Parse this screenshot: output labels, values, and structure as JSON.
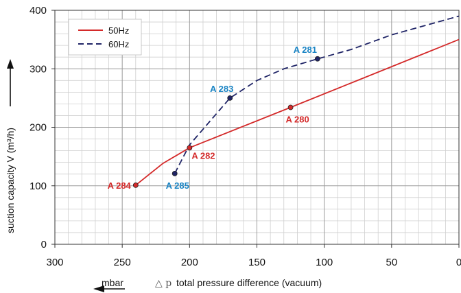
{
  "chart_data": {
    "type": "line",
    "xlabel": "total pressure difference (vacuum)",
    "xlabel_symbol": "△ p",
    "xunit": "mbar",
    "ylabel": "suction capacity V (m³/h)",
    "xlim": [
      300,
      0
    ],
    "ylim": [
      0,
      400
    ],
    "x_ticks": [
      300,
      250,
      200,
      150,
      100,
      50,
      0
    ],
    "y_ticks": [
      0,
      100,
      200,
      300,
      400
    ],
    "x_minor_step": 10,
    "y_minor_step": 20,
    "grid": true,
    "legend_position": "top-left",
    "series": [
      {
        "name": "50Hz",
        "color": "#d42a2a",
        "style": "solid",
        "points": [
          [
            240,
            101
          ],
          [
            220,
            138
          ],
          [
            200,
            165
          ],
          [
            125,
            234
          ],
          [
            0,
            350
          ]
        ]
      },
      {
        "name": "60Hz",
        "color": "#1f2466",
        "style": "dashed",
        "points": [
          [
            211,
            121
          ],
          [
            200,
            170
          ],
          [
            170,
            250
          ],
          [
            150,
            280
          ],
          [
            130,
            300
          ],
          [
            105,
            317
          ],
          [
            80,
            333
          ],
          [
            50,
            358
          ],
          [
            0,
            390
          ]
        ]
      }
    ],
    "markers": [
      {
        "label": "A 284",
        "x": 240,
        "y": 101,
        "series": 0,
        "label_color": "#d42a2a",
        "anchor": "end",
        "dx": -7,
        "dy": 5
      },
      {
        "label": "A 282",
        "x": 200,
        "y": 165,
        "series": 0,
        "label_color": "#d42a2a",
        "anchor": "start",
        "dx": 3,
        "dy": 16
      },
      {
        "label": "A 280",
        "x": 125,
        "y": 234,
        "series": 0,
        "label_color": "#d42a2a",
        "anchor": "middle",
        "dx": 10,
        "dy": 22
      },
      {
        "label": "A 285",
        "x": 211,
        "y": 121,
        "series": 1,
        "label_color": "#1a84c4",
        "anchor": "middle",
        "dx": 4,
        "dy": 22
      },
      {
        "label": "A 283",
        "x": 170,
        "y": 250,
        "series": 1,
        "label_color": "#1a84c4",
        "anchor": "middle",
        "dx": -12,
        "dy": -9
      },
      {
        "label": "A 281",
        "x": 105,
        "y": 317,
        "series": 1,
        "label_color": "#1a84c4",
        "anchor": "middle",
        "dx": -18,
        "dy": -9
      }
    ]
  }
}
